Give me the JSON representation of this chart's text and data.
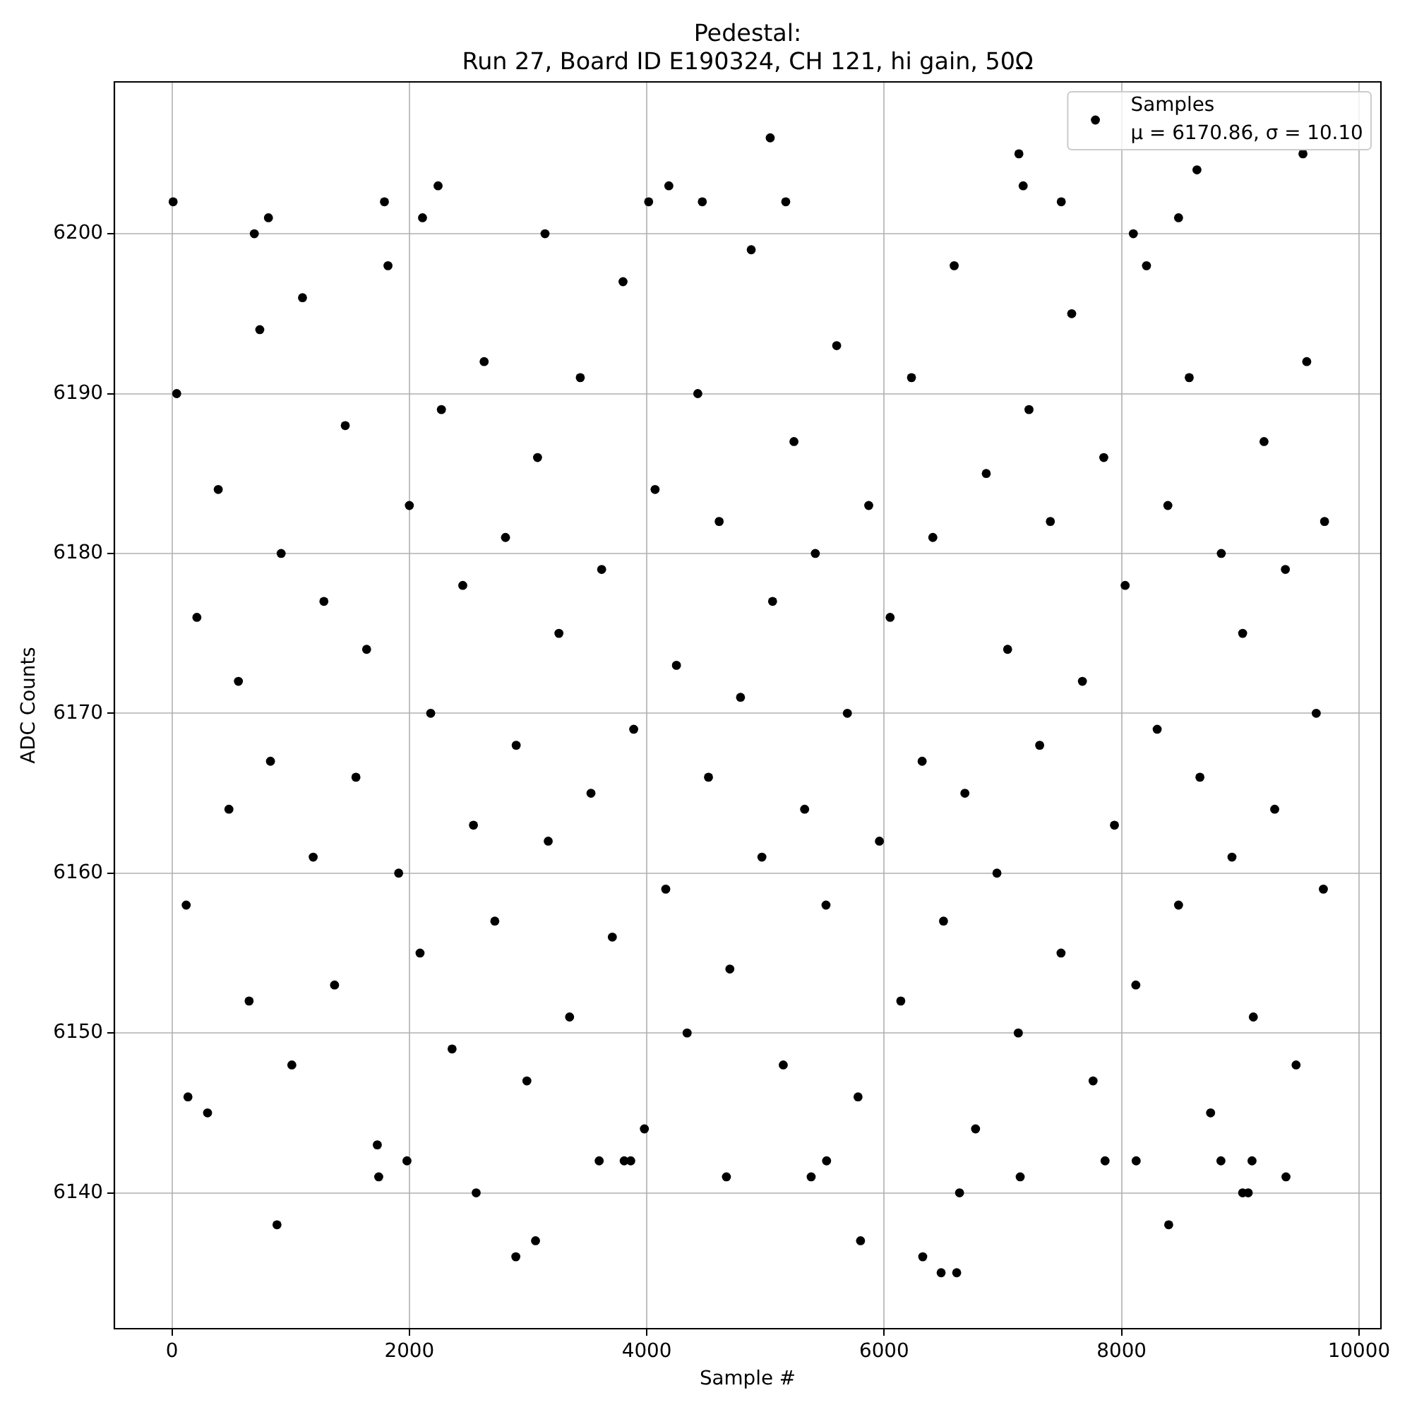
{
  "chart_data": {
    "type": "scatter",
    "title": "Pedestal:\nRun 27, Board ID E190324, CH 121, hi gain, 50Ω",
    "xlabel": "Sample #",
    "ylabel": "ADC Counts",
    "xlim": [
      -485,
      10185
    ],
    "ylim": [
      6131.5,
      6209.5
    ],
    "xticks": [
      0,
      2000,
      4000,
      6000,
      8000,
      10000
    ],
    "yticks": [
      6140,
      6150,
      6160,
      6170,
      6180,
      6190,
      6200
    ],
    "grid": true,
    "legend": "top right",
    "marker": "circle",
    "series": [
      {
        "name": "Samples\nμ = 6170.86, σ = 10.10",
        "color": "#000000",
        "x": [
          40,
          120,
          210,
          300,
          390,
          480,
          560,
          650,
          740,
          830,
          920,
          1010,
          1100,
          1190,
          1280,
          1370,
          1460,
          1550,
          1640,
          1730,
          1820,
          1910,
          2000,
          2090,
          2180,
          2270,
          2360,
          2450,
          2540,
          2630,
          2720,
          2810,
          2900,
          2990,
          3080,
          3170,
          3260,
          3350,
          3440,
          3530,
          3620,
          3710,
          3800,
          3890,
          3980,
          4070,
          4160,
          4250,
          4340,
          4430,
          4520,
          4610,
          4700,
          4790,
          4880,
          4970,
          5060,
          5150,
          5240,
          5330,
          5420,
          5510,
          5600,
          5690,
          5780,
          5870,
          5960,
          6050,
          6140,
          6230,
          6320,
          6410,
          6500,
          6590,
          6680,
          6770,
          6860,
          6950,
          7040,
          7130,
          7220,
          7310,
          7400,
          7490,
          7580,
          7670,
          7760,
          7850,
          7940,
          8030,
          8120,
          8210,
          8300,
          8390,
          8480,
          8570,
          8660,
          8750,
          8840,
          8930,
          9020,
          9110,
          9200,
          9290,
          9380,
          9470,
          9560,
          9640,
          9700,
          9710,
          10,
          694,
          813,
          1790,
          2111,
          2242,
          3143,
          4016,
          4186,
          4468,
          5040,
          5171,
          7135,
          7171,
          7492,
          8099,
          8480,
          8635,
          9528,
          135,
          885,
          1742,
          1980,
          2563,
          2897,
          3063,
          3599,
          3810,
          3865,
          4671,
          5385,
          5515,
          5801,
          6325,
          6480,
          6611,
          6635,
          7146,
          7861,
          8123,
          8397,
          8837,
          9020,
          9067,
          9099,
          9385
        ],
        "values": [
          6190,
          6158,
          6176,
          6145,
          6184,
          6164,
          6172,
          6152,
          6194,
          6167,
          6180,
          6148,
          6196,
          6161,
          6177,
          6153,
          6188,
          6166,
          6174,
          6143,
          6198,
          6160,
          6183,
          6155,
          6170,
          6189,
          6149,
          6178,
          6163,
          6192,
          6157,
          6181,
          6168,
          6147,
          6186,
          6162,
          6175,
          6151,
          6191,
          6165,
          6179,
          6156,
          6197,
          6169,
          6144,
          6184,
          6159,
          6173,
          6150,
          6190,
          6166,
          6182,
          6154,
          6171,
          6199,
          6161,
          6177,
          6148,
          6187,
          6164,
          6180,
          6158,
          6193,
          6170,
          6146,
          6183,
          6162,
          6176,
          6152,
          6191,
          6167,
          6181,
          6157,
          6198,
          6165,
          6144,
          6185,
          6160,
          6174,
          6150,
          6189,
          6168,
          6182,
          6155,
          6195,
          6172,
          6147,
          6186,
          6163,
          6178,
          6153,
          6198,
          6169,
          6183,
          6158,
          6191,
          6166,
          6145,
          6180,
          6161,
          6175,
          6151,
          6187,
          6164,
          6179,
          6148,
          6192,
          6170,
          6159,
          6182,
          6202,
          6200,
          6201,
          6202,
          6201,
          6203,
          6200,
          6202,
          6203,
          6202,
          6206,
          6202,
          6205,
          6203,
          6202,
          6200,
          6201,
          6204,
          6205,
          6146,
          6138,
          6141,
          6142,
          6140,
          6136,
          6137,
          6142,
          6142,
          6142,
          6141,
          6141,
          6142,
          6137,
          6136,
          6135,
          6135,
          6140,
          6141,
          6142,
          6142,
          6138,
          6142,
          6140,
          6140,
          6142,
          6141
        ]
      }
    ]
  }
}
